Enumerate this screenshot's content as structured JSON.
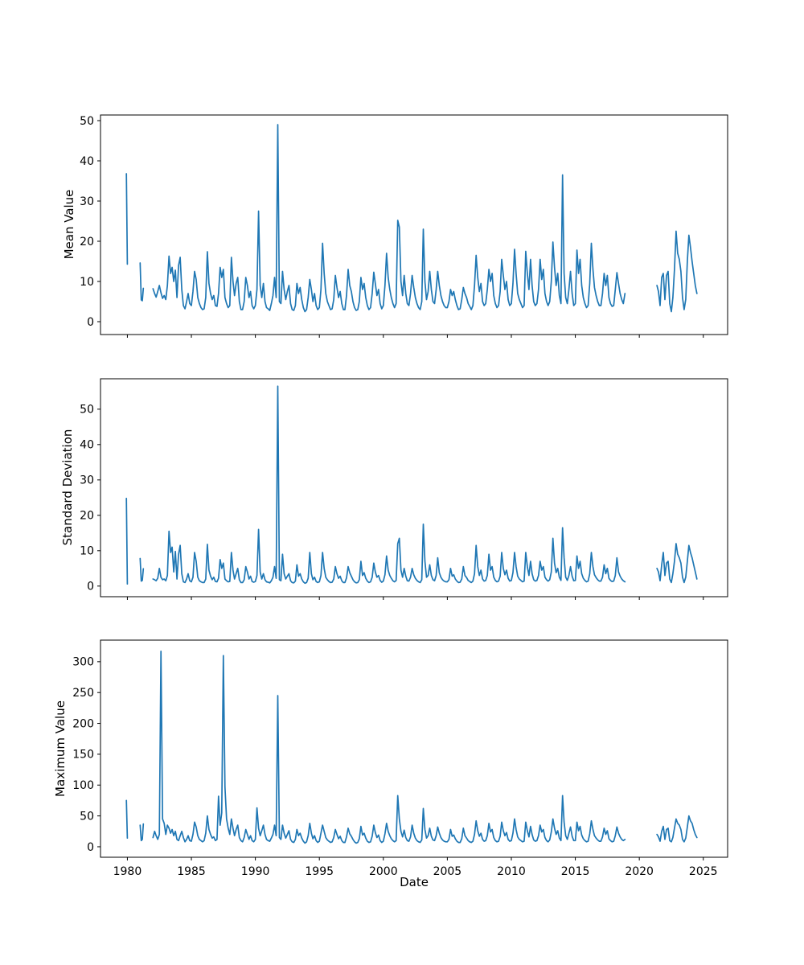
{
  "figure": {
    "background": "#ffffff",
    "line_color": "#1f77b4",
    "line_width": 1.7,
    "spine_color": "#000000"
  },
  "x_axis": {
    "label": "Date",
    "lim": [
      1977.9,
      2026.9
    ],
    "ticks": [
      1980,
      1985,
      1990,
      1995,
      2000,
      2005,
      2010,
      2015,
      2020,
      2025
    ]
  },
  "chart_data": [
    {
      "type": "line",
      "ylabel": "Mean Value",
      "ylim": [
        -3.2,
        51.4
      ],
      "yticks": [
        0,
        10,
        20,
        30,
        40,
        50
      ],
      "grid": false,
      "legend": null,
      "series_segments": [
        {
          "x_start": 1979.92,
          "x_step": 0.08,
          "values": [
            36.8,
            14.3
          ]
        },
        {
          "x_start": 1981.0,
          "x_step": 0.0833,
          "values": [
            14.6,
            5.4,
            5.2,
            8.3
          ]
        },
        {
          "x_start": 1982.0,
          "x_step": 0.125,
          "values": [
            8.2,
            7.0,
            6.1,
            7.5,
            9.0,
            7.2,
            5.8,
            6.5,
            5.5,
            9.0,
            16.3,
            12.0,
            13.5,
            10.0,
            12.8,
            6.0,
            14.0,
            16.0,
            8.0,
            4.0,
            3.2,
            5.0,
            7.0,
            4.5,
            4.0,
            7.5,
            12.5,
            10.5,
            6.0,
            4.5,
            3.5,
            3.0,
            3.2,
            6.0,
            17.4,
            9.5,
            7.0,
            5.5,
            6.5,
            4.0,
            3.8,
            7.0,
            13.5,
            11.0,
            13.0,
            6.0,
            4.5,
            3.5,
            4.0,
            16.0,
            10.0,
            6.5,
            9.5,
            11.0,
            5.0,
            3.0,
            3.0,
            5.0,
            11.0,
            9.0,
            6.0,
            7.5,
            4.0,
            3.2,
            4.0,
            8.0,
            27.5,
            9.0,
            6.0,
            9.5,
            5.0,
            3.5,
            3.2,
            2.8,
            4.5,
            6.5,
            11.0,
            6.0,
            49.0,
            5.0,
            4.5,
            12.5,
            8.0,
            5.5,
            7.5,
            9.0,
            4.5,
            3.0,
            2.8,
            4.0,
            9.5,
            7.0,
            8.5,
            5.5,
            3.5,
            2.5,
            3.0,
            6.0,
            10.5,
            8.0,
            5.0,
            7.0,
            4.0,
            3.0,
            3.5,
            8.0,
            19.5,
            12.0,
            7.0,
            5.0,
            4.0,
            3.0,
            3.2,
            5.5,
            11.5,
            8.5,
            6.0,
            7.5,
            4.5,
            3.0,
            3.0,
            6.5,
            13.0,
            9.0,
            7.5,
            5.0,
            3.5,
            2.8,
            3.0,
            5.0,
            11.0,
            8.0,
            9.5,
            6.0,
            4.0,
            3.0,
            3.5,
            7.0,
            12.3,
            9.5,
            6.5,
            8.0,
            4.5,
            3.2,
            4.0,
            9.0,
            17.0,
            11.0,
            8.0,
            6.0,
            4.5,
            3.5,
            4.5,
            25.2,
            23.5,
            10.0,
            6.5,
            11.5,
            7.0,
            4.5,
            4.0,
            7.0,
            11.5,
            8.5,
            6.0,
            4.5,
            3.5,
            3.0,
            5.0,
            23.0,
            10.0,
            5.5,
            7.5,
            12.5,
            8.0,
            5.0,
            4.5,
            8.0,
            12.5,
            9.0,
            6.5,
            5.0,
            4.0,
            3.5,
            3.5,
            5.0,
            8.0,
            6.5,
            7.5,
            5.5,
            4.0,
            3.0,
            3.2,
            5.5,
            8.5,
            7.0,
            6.0,
            4.5,
            3.8,
            3.0,
            4.0,
            9.0,
            16.5,
            11.0,
            7.5,
            9.5,
            5.0,
            4.0,
            4.5,
            8.0,
            13.0,
            10.0,
            12.0,
            6.5,
            4.5,
            3.5,
            4.0,
            7.5,
            15.5,
            11.5,
            8.0,
            10.0,
            5.5,
            4.0,
            4.5,
            9.5,
            18.0,
            12.0,
            7.0,
            5.5,
            4.5,
            3.5,
            4.0,
            17.5,
            12.0,
            8.0,
            15.5,
            9.0,
            5.0,
            4.0,
            4.5,
            8.0,
            15.5,
            10.5,
            13.0,
            7.0,
            5.0,
            4.0,
            5.0,
            10.0,
            19.8,
            13.5,
            9.0,
            12.0,
            6.5,
            4.5,
            36.5,
            12.0,
            6.0,
            4.5,
            8.0,
            12.5,
            7.0,
            4.0,
            4.5,
            17.8,
            12.0,
            15.5,
            9.0,
            6.0,
            4.5,
            3.5,
            4.0,
            9.5,
            19.5,
            13.0,
            8.5,
            6.5,
            5.0,
            4.0,
            4.0,
            7.0,
            12.0,
            9.0,
            11.5,
            6.0,
            4.5,
            3.8,
            4.0,
            8.0,
            12.2,
            9.5,
            7.0,
            5.5,
            4.5,
            7.0
          ]
        },
        {
          "x_start": 2021.375,
          "x_step": 0.125,
          "values": [
            9.0,
            7.5,
            4.0,
            11.0,
            12.0,
            5.5,
            11.5,
            12.5,
            4.5,
            2.5,
            6.0,
            13.0,
            22.5,
            17.0,
            15.5,
            12.5,
            6.0,
            3.0,
            5.5,
            15.0,
            21.5,
            18.5,
            15.0,
            12.0,
            9.0,
            7.0
          ]
        }
      ]
    },
    {
      "type": "line",
      "ylabel": "Standard Deviation",
      "ylim": [
        -3.0,
        58.6
      ],
      "yticks": [
        0,
        10,
        20,
        30,
        40,
        50
      ],
      "grid": false,
      "legend": null,
      "series_segments": [
        {
          "x_start": 1979.92,
          "x_step": 0.08,
          "values": [
            24.8,
            0.6
          ]
        },
        {
          "x_start": 1981.0,
          "x_step": 0.0833,
          "values": [
            7.8,
            1.4,
            1.6,
            4.9
          ]
        },
        {
          "x_start": 1982.0,
          "x_step": 0.125,
          "values": [
            2.0,
            1.8,
            1.5,
            2.2,
            5.0,
            2.5,
            1.8,
            2.0,
            1.5,
            3.0,
            15.5,
            9.5,
            11.0,
            4.0,
            9.8,
            2.0,
            9.0,
            11.5,
            3.5,
            1.2,
            1.0,
            2.0,
            3.5,
            1.5,
            1.2,
            2.5,
            9.5,
            7.0,
            2.5,
            1.5,
            1.2,
            1.0,
            1.0,
            2.0,
            11.8,
            4.5,
            2.8,
            1.8,
            2.5,
            1.3,
            1.2,
            2.2,
            7.5,
            5.0,
            6.5,
            2.0,
            1.5,
            1.2,
            1.3,
            9.5,
            4.5,
            2.0,
            3.5,
            5.0,
            1.8,
            1.0,
            1.0,
            1.8,
            5.5,
            4.0,
            2.0,
            2.8,
            1.3,
            1.1,
            1.3,
            3.0,
            16.0,
            4.0,
            2.0,
            3.5,
            1.8,
            1.2,
            1.1,
            0.9,
            1.5,
            2.5,
            5.5,
            2.2,
            56.5,
            1.8,
            1.5,
            9.0,
            3.5,
            2.0,
            2.8,
            3.5,
            1.5,
            1.0,
            0.9,
            1.4,
            6.0,
            2.8,
            3.5,
            2.0,
            1.2,
            0.8,
            1.0,
            2.2,
            9.5,
            3.5,
            1.8,
            2.5,
            1.3,
            1.0,
            1.2,
            3.0,
            9.5,
            5.0,
            2.5,
            1.8,
            1.3,
            1.0,
            1.1,
            2.0,
            5.5,
            3.5,
            2.2,
            2.8,
            1.5,
            1.0,
            1.0,
            2.3,
            5.5,
            3.8,
            2.8,
            1.8,
            1.2,
            0.9,
            1.0,
            1.8,
            7.0,
            3.0,
            3.8,
            2.2,
            1.4,
            1.0,
            1.2,
            2.5,
            6.5,
            4.0,
            2.5,
            3.0,
            1.6,
            1.1,
            1.4,
            3.2,
            8.5,
            4.5,
            3.0,
            2.2,
            1.5,
            1.2,
            1.6,
            12.0,
            13.5,
            4.5,
            2.5,
            5.0,
            2.8,
            1.5,
            1.4,
            2.5,
            5.0,
            3.2,
            2.2,
            1.6,
            1.2,
            1.0,
            1.8,
            17.5,
            7.0,
            2.5,
            3.0,
            6.0,
            3.0,
            1.8,
            1.5,
            3.0,
            8.0,
            3.8,
            2.5,
            1.8,
            1.4,
            1.2,
            1.2,
            1.8,
            5.0,
            2.8,
            3.2,
            2.0,
            1.4,
            1.0,
            1.1,
            2.0,
            5.5,
            3.0,
            2.4,
            1.6,
            1.3,
            1.0,
            1.4,
            3.5,
            11.5,
            5.5,
            3.0,
            4.5,
            2.0,
            1.4,
            1.6,
            3.0,
            9.0,
            4.5,
            5.5,
            2.5,
            1.6,
            1.2,
            1.4,
            2.8,
            9.5,
            5.0,
            3.2,
            4.5,
            2.2,
            1.4,
            1.6,
            3.8,
            9.5,
            5.5,
            2.8,
            2.0,
            1.6,
            1.2,
            1.4,
            9.5,
            5.5,
            3.0,
            7.0,
            3.5,
            1.8,
            1.4,
            1.6,
            3.0,
            7.0,
            4.5,
            5.5,
            2.5,
            1.8,
            1.4,
            1.8,
            4.0,
            13.5,
            6.5,
            3.8,
            5.0,
            2.5,
            1.6,
            16.5,
            8.0,
            2.5,
            1.6,
            3.0,
            5.5,
            2.8,
            1.5,
            1.6,
            8.5,
            5.0,
            7.0,
            3.5,
            2.2,
            1.6,
            1.2,
            1.4,
            3.5,
            9.5,
            5.5,
            3.2,
            2.4,
            1.8,
            1.4,
            1.4,
            2.5,
            6.0,
            3.5,
            5.0,
            2.2,
            1.6,
            1.3,
            1.4,
            3.0,
            8.0,
            4.0,
            2.8,
            2.0,
            1.5,
            1.2
          ]
        },
        {
          "x_start": 2021.375,
          "x_step": 0.125,
          "values": [
            5.0,
            4.0,
            1.5,
            6.0,
            9.5,
            3.0,
            6.5,
            7.0,
            2.0,
            1.0,
            3.5,
            7.0,
            12.0,
            9.0,
            8.0,
            6.5,
            2.5,
            1.0,
            2.5,
            7.0,
            11.5,
            9.5,
            8.0,
            6.0,
            4.0,
            2.0
          ]
        }
      ]
    },
    {
      "type": "line",
      "ylabel": "Maximum Value",
      "ylim": [
        -17,
        335
      ],
      "yticks": [
        0,
        50,
        100,
        150,
        200,
        250,
        300
      ],
      "grid": false,
      "legend": null,
      "series_segments": [
        {
          "x_start": 1979.92,
          "x_step": 0.08,
          "values": [
            75,
            14
          ]
        },
        {
          "x_start": 1981.0,
          "x_step": 0.0833,
          "values": [
            35,
            10,
            12,
            37
          ]
        },
        {
          "x_start": 1982.0,
          "x_step": 0.125,
          "values": [
            15,
            25,
            18,
            12,
            20,
            317,
            45,
            38,
            20,
            35,
            30,
            22,
            28,
            18,
            25,
            12,
            10,
            18,
            25,
            15,
            8,
            12,
            18,
            10,
            9,
            20,
            40,
            32,
            18,
            12,
            10,
            8,
            10,
            22,
            50,
            28,
            20,
            14,
            16,
            10,
            12,
            82,
            35,
            55,
            310,
            97,
            45,
            30,
            20,
            45,
            30,
            18,
            28,
            35,
            15,
            10,
            8,
            15,
            28,
            20,
            12,
            18,
            10,
            8,
            12,
            63,
            30,
            18,
            26,
            35,
            20,
            12,
            10,
            9,
            14,
            20,
            35,
            18,
            245,
            15,
            12,
            35,
            22,
            14,
            20,
            26,
            12,
            8,
            7,
            12,
            28,
            18,
            22,
            14,
            9,
            6,
            8,
            18,
            38,
            22,
            13,
            18,
            10,
            7,
            9,
            22,
            35,
            25,
            15,
            11,
            9,
            7,
            8,
            15,
            28,
            20,
            13,
            17,
            10,
            7,
            7,
            16,
            30,
            21,
            17,
            12,
            8,
            6,
            7,
            13,
            33,
            19,
            22,
            14,
            9,
            7,
            8,
            17,
            35,
            23,
            15,
            19,
            10,
            7,
            9,
            21,
            38,
            25,
            18,
            13,
            10,
            8,
            10,
            83,
            45,
            25,
            16,
            27,
            15,
            10,
            9,
            16,
            35,
            22,
            14,
            10,
            8,
            7,
            11,
            62,
            28,
            14,
            18,
            30,
            17,
            11,
            10,
            18,
            32,
            22,
            15,
            11,
            9,
            8,
            8,
            12,
            28,
            17,
            19,
            13,
            9,
            7,
            7,
            13,
            30,
            18,
            14,
            10,
            8,
            7,
            9,
            20,
            42,
            26,
            17,
            22,
            12,
            9,
            10,
            18,
            38,
            24,
            28,
            15,
            10,
            8,
            9,
            17,
            40,
            26,
            18,
            23,
            12,
            9,
            10,
            22,
            45,
            28,
            16,
            12,
            10,
            8,
            9,
            40,
            26,
            16,
            33,
            20,
            11,
            9,
            10,
            18,
            35,
            24,
            28,
            15,
            10,
            8,
            11,
            24,
            45,
            30,
            20,
            26,
            14,
            10,
            83,
            40,
            18,
            12,
            22,
            32,
            17,
            10,
            10,
            40,
            26,
            33,
            19,
            13,
            10,
            8,
            9,
            21,
            42,
            28,
            18,
            14,
            11,
            9,
            9,
            16,
            30,
            20,
            26,
            13,
            10,
            8,
            9,
            18,
            32,
            22,
            16,
            12,
            10,
            12
          ]
        },
        {
          "x_start": 2021.375,
          "x_step": 0.125,
          "values": [
            20,
            16,
            9,
            25,
            33,
            12,
            28,
            30,
            10,
            8,
            15,
            30,
            45,
            38,
            35,
            28,
            12,
            8,
            14,
            32,
            50,
            42,
            38,
            28,
            20,
            15
          ]
        }
      ]
    }
  ]
}
